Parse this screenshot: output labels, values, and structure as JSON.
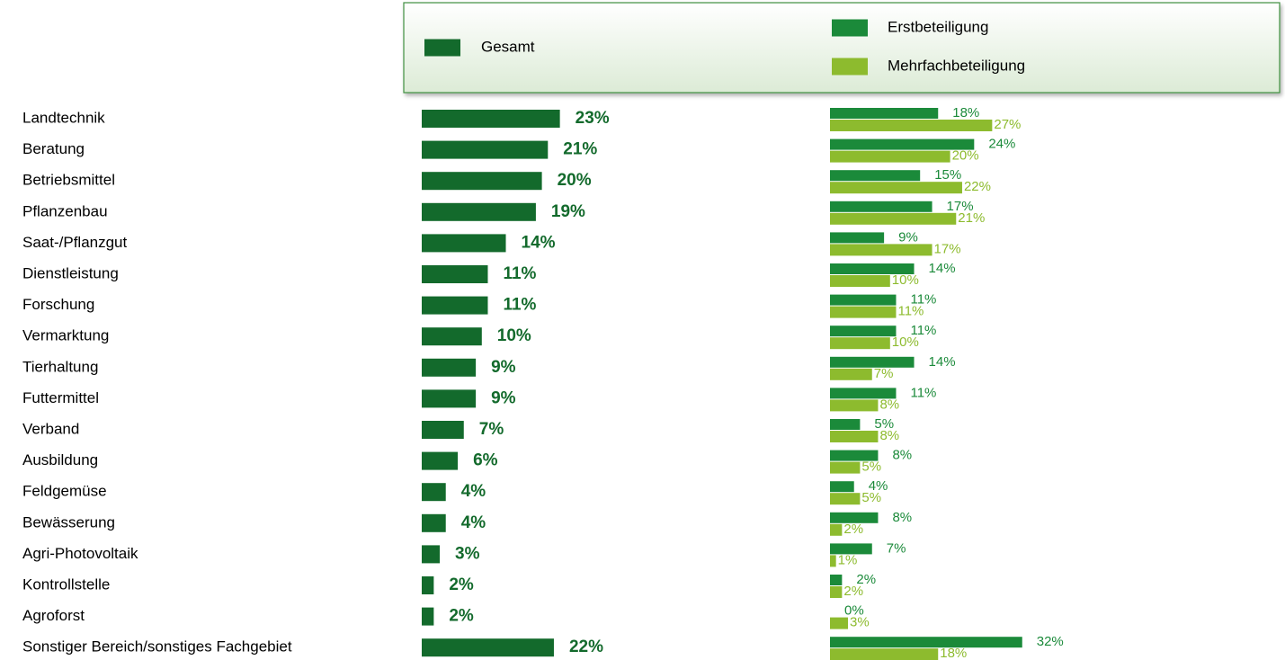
{
  "chart_data": {
    "type": "bar",
    "orientation": "horizontal",
    "categories": [
      "Landtechnik",
      "Beratung",
      "Betriebsmittel",
      "Pflanzenbau",
      "Saat-/Pflanzgut",
      "Dienstleistung",
      "Forschung",
      "Vermarktung",
      "Tierhaltung",
      "Futtermittel",
      "Verband",
      "Ausbildung",
      "Feldgemüse",
      "Bewässerung",
      "Agri-Photovoltaik",
      "Kontrollstelle",
      "Agroforst",
      "Sonstiger Bereich/sonstiges Fachgebiet"
    ],
    "series": [
      {
        "name": "Gesamt",
        "color": "#136a2c",
        "values": [
          23,
          21,
          20,
          19,
          14,
          11,
          11,
          10,
          9,
          9,
          7,
          6,
          4,
          4,
          3,
          2,
          2,
          22
        ],
        "value_labels": [
          "23%",
          "21%",
          "20%",
          "19%",
          "14%",
          "11%",
          "11%",
          "10%",
          "9%",
          "9%",
          "7%",
          "6%",
          "4%",
          "4%",
          "3%",
          "2%",
          "2%",
          "22%"
        ]
      },
      {
        "name": "Erstbeteiligung",
        "color": "#1b8a3a",
        "values": [
          18,
          24,
          15,
          17,
          9,
          14,
          11,
          11,
          14,
          11,
          5,
          8,
          4,
          8,
          7,
          2,
          0,
          32
        ],
        "value_labels": [
          "18%",
          "24%",
          "15%",
          "17%",
          "9%",
          "14%",
          "11%",
          "11%",
          "14%",
          "11%",
          "5%",
          "8%",
          "4%",
          "8%",
          "7%",
          "2%",
          "0%",
          "32%"
        ]
      },
      {
        "name": "Mehrfachbeteiligung",
        "color": "#8dbb2e",
        "values": [
          27,
          20,
          22,
          21,
          17,
          10,
          11,
          10,
          7,
          8,
          8,
          5,
          5,
          2,
          1,
          2,
          3,
          18
        ],
        "value_labels": [
          "27%",
          "20%",
          "22%",
          "21%",
          "17%",
          "10%",
          "11%",
          "10%",
          "7%",
          "8%",
          "8%",
          "5%",
          "5%",
          "2%",
          "1%",
          "2%",
          "3%",
          "18%"
        ]
      }
    ]
  }
}
